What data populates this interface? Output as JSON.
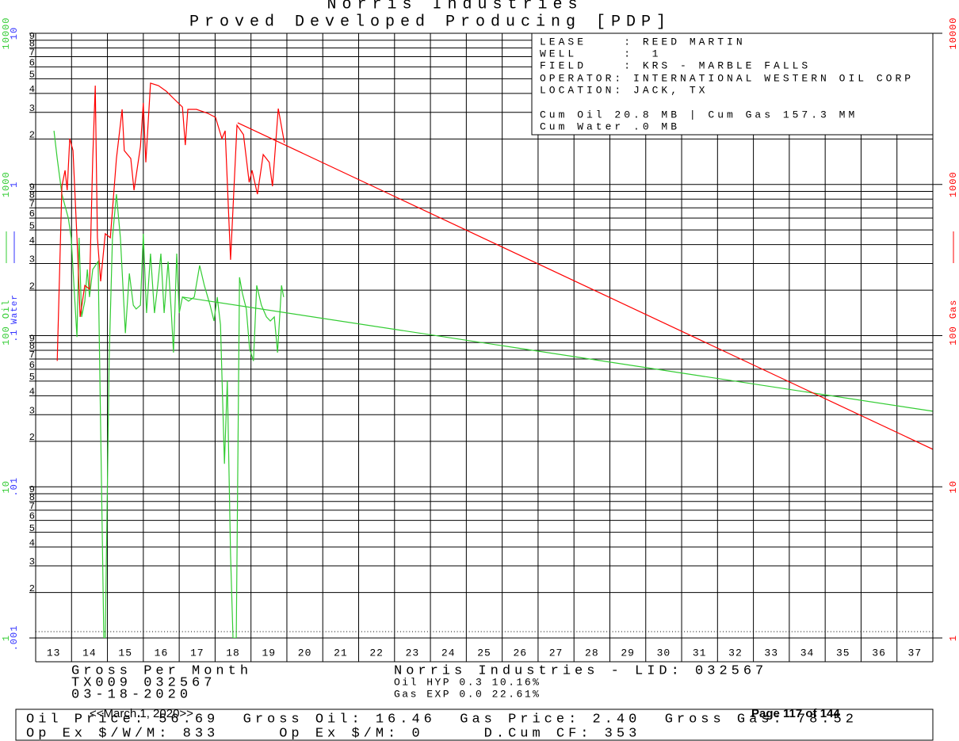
{
  "chart_data": {
    "type": "line",
    "title": "Norris Industries",
    "subtitle": "Proved Developed Producing [PDP]",
    "y_scale": "log",
    "grid": true,
    "xlim": [
      13,
      38
    ],
    "xticks": [
      13,
      14,
      15,
      16,
      17,
      18,
      19,
      20,
      21,
      22,
      23,
      24,
      25,
      26,
      27,
      28,
      29,
      30,
      31,
      32,
      33,
      34,
      35,
      36,
      37
    ],
    "ylim": [
      1,
      10000
    ],
    "yticks": [
      1,
      10,
      100,
      1000,
      10000
    ],
    "y_label": "Oil",
    "y_color": "#33cc33",
    "minor_yticks": [
      2,
      3,
      4,
      5,
      6,
      7,
      8,
      9,
      {
        "value": 20,
        "label": "2"
      },
      {
        "value": 30,
        "label": "3"
      },
      {
        "value": 40,
        "label": "4"
      },
      {
        "value": 50,
        "label": "5"
      },
      {
        "value": 60,
        "label": "6"
      },
      {
        "value": 70,
        "label": "7"
      },
      {
        "value": 80,
        "label": "8"
      },
      {
        "value": 90,
        "label": "9"
      },
      {
        "value": 200,
        "label": "2"
      },
      {
        "value": 300,
        "label": "3"
      },
      {
        "value": 400,
        "label": "4"
      },
      {
        "value": 500,
        "label": "5"
      },
      {
        "value": 600,
        "label": "6"
      },
      {
        "value": 700,
        "label": "7"
      },
      {
        "value": 800,
        "label": "8"
      },
      {
        "value": 900,
        "label": "9"
      },
      {
        "value": 2000,
        "label": "2"
      },
      {
        "value": 3000,
        "label": "3"
      },
      {
        "value": 4000,
        "label": "4"
      },
      {
        "value": 5000,
        "label": "5"
      },
      {
        "value": 6000,
        "label": "6"
      },
      {
        "value": 7000,
        "label": "7"
      },
      {
        "value": 8000,
        "label": "8"
      },
      {
        "value": 9000,
        "label": "9"
      }
    ],
    "y2_label": "Water",
    "y2_color": "#3333ff",
    "y2lim": [
      0.001,
      10
    ],
    "y2ticks": [
      {
        "value": 0.001,
        "label": ".001"
      },
      {
        "value": 0.01,
        "label": ".01"
      },
      {
        "value": 0.1,
        "label": ".1"
      },
      1,
      10
    ],
    "y3_label": "Gas",
    "y3_color": "#ff0000",
    "y3lim": [
      1,
      10000
    ],
    "y3ticks": [
      1,
      10,
      100,
      1000,
      10000
    ],
    "series": [
      {
        "axis": "y",
        "color": "#33cc33",
        "x": [
          13.51,
          13.6,
          13.73,
          13.82,
          13.91,
          13.99,
          14.15,
          14.21,
          14.28,
          14.37,
          14.44,
          14.5,
          14.59,
          14.74,
          14.83,
          14.9,
          14.94,
          15.05,
          15.14,
          15.25,
          15.36,
          15.5,
          15.61,
          15.72,
          15.8,
          15.92,
          16.0,
          16.09,
          16.2,
          16.31,
          16.4,
          16.49,
          16.58,
          16.69,
          16.78,
          16.84,
          16.93,
          17.0,
          17.09,
          17.26,
          17.42,
          17.57,
          17.7,
          17.86,
          17.97,
          18.06,
          18.15,
          18.26,
          18.34,
          18.43,
          18.5,
          18.59,
          18.68,
          18.76,
          18.87,
          18.96,
          19.07,
          19.16,
          19.29,
          19.43,
          19.54,
          19.65,
          19.74,
          19.85,
          19.91
        ],
        "values": [
          2265,
          1485,
          863,
          720,
          600,
          444,
          98,
          444,
          133,
          169,
          274,
          180,
          274,
          309,
          11.9,
          1,
          1,
          72.6,
          444,
          863,
          444,
          104,
          258,
          159,
          150,
          159,
          472,
          141,
          349,
          141,
          215,
          349,
          141,
          309,
          141,
          77.2,
          349,
          141,
          180,
          169,
          180,
          291,
          215,
          159,
          125,
          180,
          118,
          14.2,
          50.6,
          3.55,
          1,
          1,
          243,
          191,
          150,
          81.9,
          68,
          215,
          159,
          133,
          125,
          133,
          77.2,
          215,
          180
        ]
      },
      {
        "axis": "y3",
        "color": "#ff0000",
        "x": [
          13.6,
          13.73,
          13.82,
          13.88,
          13.95,
          14.04,
          14.17,
          14.24,
          14.37,
          14.5,
          14.59,
          14.66,
          14.72,
          14.81,
          14.94,
          15.08,
          15.25,
          15.41,
          15.47,
          15.65,
          15.74,
          15.92,
          16.0,
          16.07,
          16.2,
          16.42,
          16.64,
          16.86,
          17.09,
          17.17,
          17.24,
          17.48,
          17.79,
          18.01,
          18.19,
          18.28,
          18.43,
          18.61,
          18.79,
          18.95,
          19.03,
          19.18,
          19.34,
          19.51,
          19.6,
          19.76,
          19.93
        ],
        "values": [
          68,
          973,
          1240,
          916,
          2010,
          1675,
          349,
          133,
          215,
          203,
          1485,
          4510,
          444,
          229,
          472,
          444,
          1485,
          3140,
          1675,
          1485,
          916,
          1780,
          3460,
          1400,
          4680,
          4510,
          4140,
          3670,
          3250,
          1820,
          3140,
          3140,
          2960,
          2780,
          2010,
          2265,
          317,
          2465,
          2135,
          1033,
          1240,
          863,
          1578,
          1400,
          973,
          3178,
          1890
        ]
      },
      {
        "axis": "y",
        "color": "#33cc33",
        "x": [
          17.09,
          38
        ],
        "values": [
          180,
          31.6
        ]
      },
      {
        "axis": "y3",
        "color": "#ff0000",
        "x": [
          18.63,
          38
        ],
        "values": [
          2560,
          17.7
        ]
      }
    ]
  },
  "info_box": {
    "lines": [
      "LEASE    : REED MARTIN",
      "WELL     :  1",
      "FIELD    : KRS - MARBLE FALLS",
      "OPERATOR: INTERNATIONAL WESTERN OIL CORP",
      "LOCATION: JACK, TX",
      "Cum Oil 20.8 MB | Cum Gas 157.3 MM",
      "Cum Water .0 MB"
    ]
  },
  "footer": {
    "left": [
      "Gross Per Month",
      "TX009 032567",
      "03-18-2020"
    ],
    "center": "Norris Industries - LID: 032567",
    "decline": [
      "Oil HYP 0.3 10.16%",
      "Gas EXP 0.0 22.61%"
    ],
    "summary": [
      "Oil Price: 56.69  Gross Oil: 16.46  Gas Price: 2.40  Gross Gas: 78.52",
      "Op Ex $/W/M: 833     Op Ex $/M: 0     D.Cum CF: 353"
    ]
  },
  "navigation": {
    "date": "<<March 1, 2020>>",
    "page": "Page 117 of 144"
  }
}
